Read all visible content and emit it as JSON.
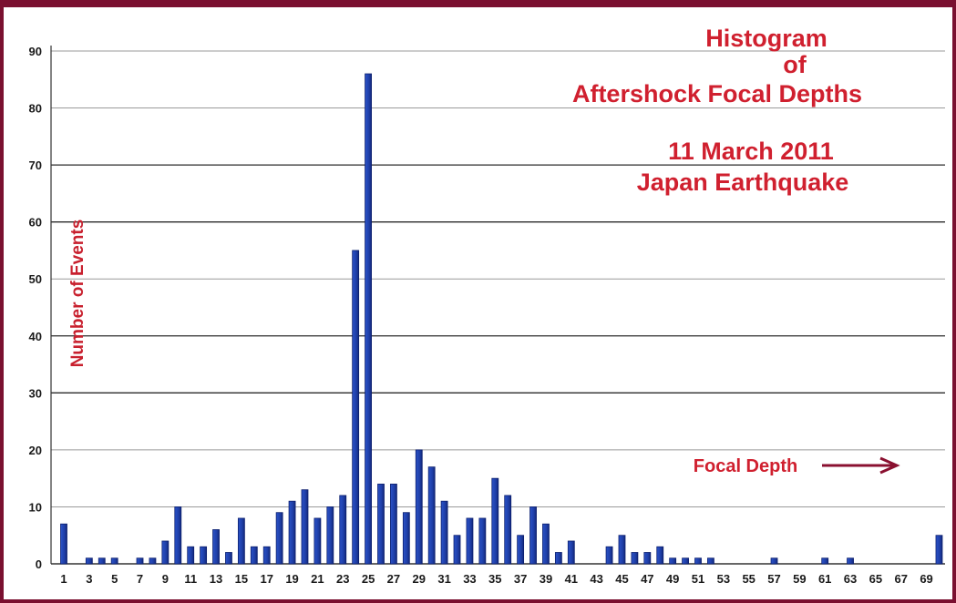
{
  "chart_data": {
    "type": "bar",
    "title_lines": [
      "Histogram",
      "of",
      "Aftershock Focal Depths",
      "11 March 2011",
      "Japan Earthquake"
    ],
    "xlabel": "Focal Depth",
    "ylabel": "Number of Events",
    "ylim": [
      0,
      90
    ],
    "yticks": [
      0,
      10,
      20,
      30,
      40,
      50,
      60,
      70,
      80,
      90
    ],
    "grid": true,
    "categories": [
      1,
      2,
      3,
      4,
      5,
      6,
      7,
      8,
      9,
      10,
      11,
      12,
      13,
      14,
      15,
      16,
      17,
      18,
      19,
      20,
      21,
      22,
      23,
      24,
      25,
      26,
      27,
      28,
      29,
      30,
      31,
      32,
      33,
      34,
      35,
      36,
      37,
      38,
      39,
      40,
      41,
      42,
      43,
      44,
      45,
      46,
      47,
      48,
      49,
      50,
      51,
      52,
      53,
      54,
      55,
      56,
      57,
      58,
      59,
      60,
      61,
      62,
      63,
      64,
      65,
      66,
      67,
      68,
      69,
      70
    ],
    "xtick_labels": [
      "1",
      "3",
      "5",
      "7",
      "9",
      "11",
      "13",
      "15",
      "17",
      "19",
      "21",
      "23",
      "25",
      "27",
      "29",
      "31",
      "33",
      "35",
      "37",
      "39",
      "41",
      "43",
      "45",
      "47",
      "49",
      "51",
      "53",
      "55",
      "57",
      "59",
      "61",
      "63",
      "65",
      "67",
      "69"
    ],
    "values": [
      7,
      0,
      1,
      1,
      1,
      0,
      1,
      1,
      4,
      10,
      3,
      3,
      6,
      2,
      8,
      3,
      3,
      9,
      11,
      13,
      8,
      10,
      12,
      55,
      86,
      14,
      14,
      9,
      20,
      17,
      11,
      5,
      8,
      8,
      15,
      12,
      5,
      10,
      7,
      2,
      4,
      0,
      0,
      3,
      5,
      2,
      2,
      3,
      1,
      1,
      1,
      1,
      0,
      0,
      0,
      0,
      1,
      0,
      0,
      0,
      1,
      0,
      1,
      0,
      0,
      0,
      0,
      0,
      0,
      5
    ],
    "colors": {
      "bar": "#1f3fa8",
      "bar_edge": "#0c1f6e",
      "title": "#d0202f",
      "ylabel": "#c8202e",
      "arrow": "#8a1030",
      "border": "#7a1030"
    }
  }
}
